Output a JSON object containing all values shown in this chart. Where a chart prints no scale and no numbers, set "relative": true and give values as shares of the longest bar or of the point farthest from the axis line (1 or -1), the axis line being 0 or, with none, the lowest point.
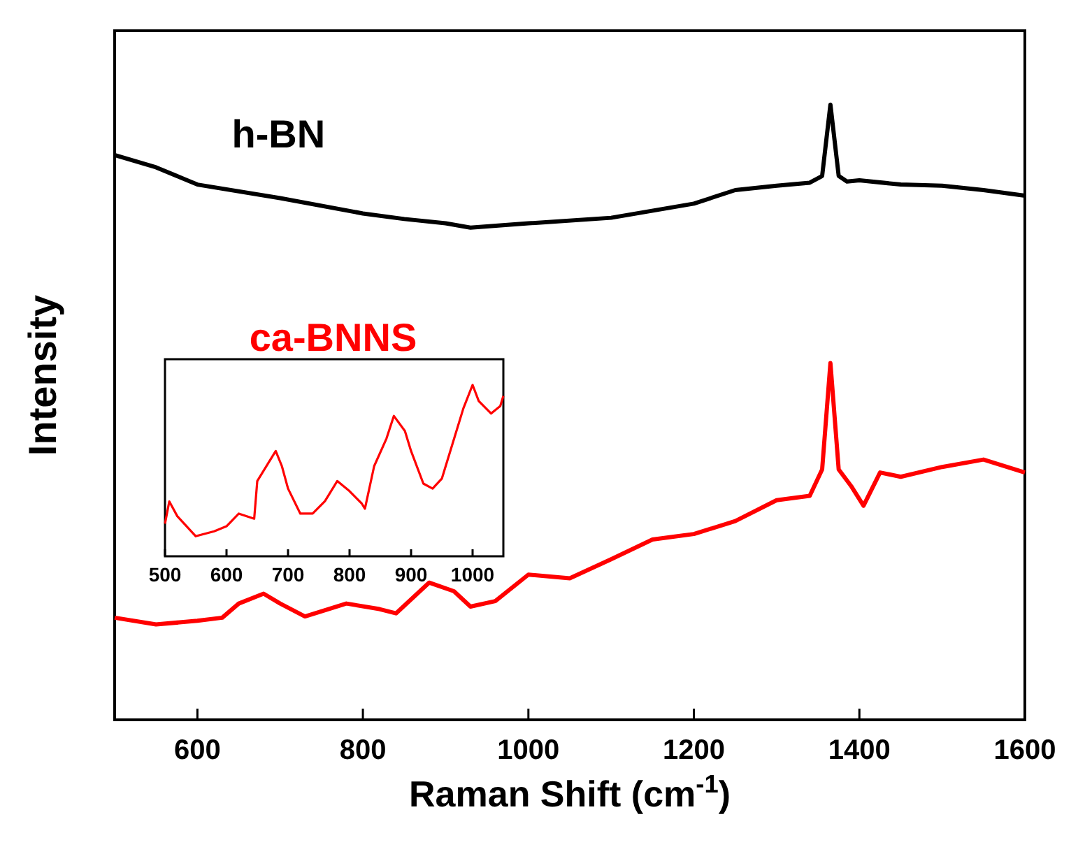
{
  "chart_data": [
    {
      "type": "line",
      "xlabel": "Raman Shift (cm$^{-1}$)",
      "ylabel": "Intensity",
      "relative": true,
      "xlim": [
        500,
        1600
      ],
      "xticks": [
        600,
        800,
        1000,
        1200,
        1400,
        1600
      ],
      "grid": false,
      "series": [
        {
          "name": "h-BN",
          "color": "#000000",
          "x": [
            500,
            550,
            600,
            700,
            800,
            850,
            900,
            930,
            1000,
            1100,
            1200,
            1250,
            1300,
            1340,
            1355,
            1365,
            1375,
            1385,
            1400,
            1450,
            1500,
            1550,
            1600
          ],
          "values": [
            0.918,
            0.898,
            0.87,
            0.848,
            0.823,
            0.814,
            0.807,
            0.8,
            0.807,
            0.816,
            0.839,
            0.861,
            0.868,
            0.873,
            0.884,
            1.0,
            0.884,
            0.875,
            0.877,
            0.87,
            0.868,
            0.861,
            0.852
          ]
        },
        {
          "name": "ca-BNNS",
          "color": "#ff0000",
          "x": [
            500,
            550,
            600,
            630,
            650,
            680,
            700,
            730,
            780,
            820,
            840,
            880,
            910,
            930,
            960,
            1000,
            1050,
            1100,
            1150,
            1200,
            1250,
            1300,
            1340,
            1355,
            1365,
            1375,
            1390,
            1405,
            1425,
            1450,
            1500,
            1550,
            1600
          ],
          "values": [
            0.166,
            0.155,
            0.161,
            0.166,
            0.189,
            0.205,
            0.189,
            0.168,
            0.189,
            0.18,
            0.173,
            0.223,
            0.209,
            0.184,
            0.193,
            0.236,
            0.23,
            0.261,
            0.293,
            0.302,
            0.323,
            0.357,
            0.364,
            0.407,
            0.58,
            0.407,
            0.38,
            0.348,
            0.402,
            0.395,
            0.411,
            0.423,
            0.402
          ]
        }
      ]
    },
    {
      "type": "line",
      "relative": true,
      "xlim": [
        500,
        1050
      ],
      "xticks": [
        500,
        600,
        700,
        800,
        900,
        1000
      ],
      "tick_labels": "x",
      "grid": false,
      "series": [
        {
          "color": "#ff0000",
          "x": [
            500,
            507,
            520,
            550,
            580,
            600,
            620,
            645,
            650,
            670,
            680,
            690,
            700,
            720,
            740,
            760,
            780,
            800,
            820,
            825,
            840,
            860,
            872,
            890,
            900,
            920,
            935,
            950,
            970,
            985,
            1000,
            1010,
            1030,
            1045,
            1050
          ],
          "values": [
            0.19,
            0.32,
            0.234,
            0.117,
            0.146,
            0.175,
            0.249,
            0.219,
            0.439,
            0.556,
            0.614,
            0.526,
            0.395,
            0.249,
            0.249,
            0.322,
            0.439,
            0.38,
            0.307,
            0.278,
            0.526,
            0.687,
            0.819,
            0.731,
            0.614,
            0.424,
            0.395,
            0.453,
            0.687,
            0.863,
            1.0,
            0.906,
            0.833,
            0.877,
            0.936
          ]
        }
      ]
    }
  ]
}
